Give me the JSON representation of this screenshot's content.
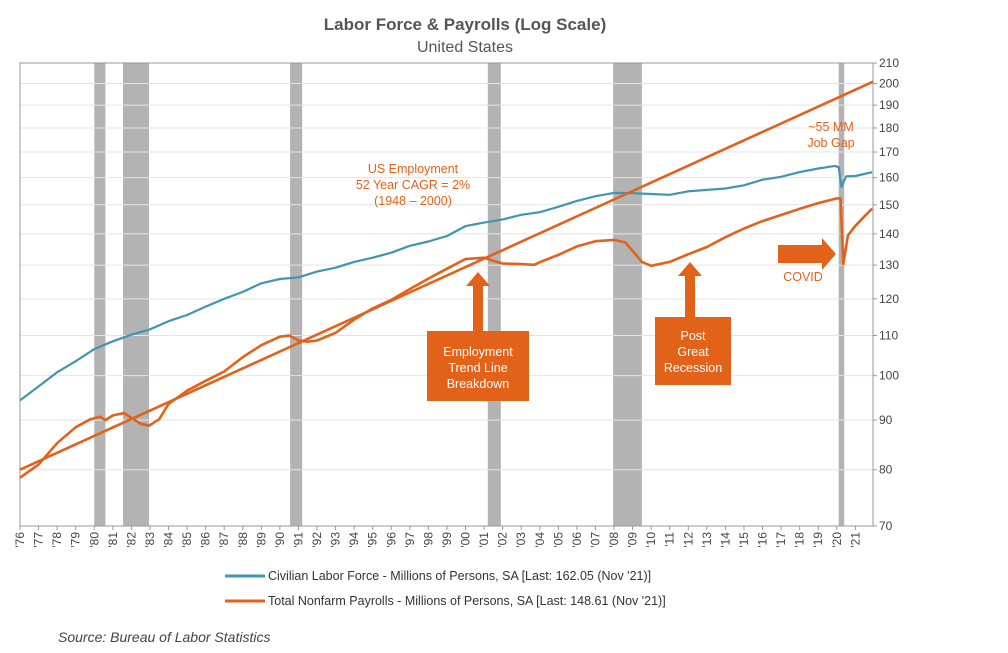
{
  "colors": {
    "labor_force": "#3f96b0",
    "payrolls": "#e2621a",
    "trend": "#e2621a",
    "recession": "#b3b3b3",
    "annotation_box": "#e2621a",
    "grid": "#e4e4e4"
  },
  "chart_data": {
    "type": "line",
    "title": "Labor Force & Payrolls (Log Scale)",
    "subtitle": "United States",
    "y_scale": "log",
    "ylim": [
      70,
      210
    ],
    "y_ticks": [
      70,
      80,
      90,
      100,
      110,
      120,
      130,
      140,
      150,
      160,
      170,
      180,
      190,
      200,
      210
    ],
    "x_range": [
      1976.0,
      2021.95
    ],
    "x_tick_labels": [
      "'76",
      "'77",
      "'78",
      "'79",
      "'80",
      "'81",
      "'82",
      "'83",
      "'84",
      "'85",
      "'86",
      "'87",
      "'88",
      "'89",
      "'90",
      "'91",
      "'92",
      "'93",
      "'94",
      "'95",
      "'96",
      "'97",
      "'98",
      "'99",
      "'00",
      "'01",
      "'02",
      "'03",
      "'04",
      "'05",
      "'06",
      "'07",
      "'08",
      "'09",
      "'10",
      "'11",
      "'12",
      "'13",
      "'14",
      "'15",
      "'16",
      "'17",
      "'18",
      "'19",
      "'20",
      "'21"
    ],
    "grid": "horizontal",
    "legend_position": "bottom",
    "recessions": [
      [
        1980.0,
        1980.6
      ],
      [
        1981.55,
        1982.95
      ],
      [
        1990.55,
        1991.2
      ],
      [
        2001.2,
        2001.9
      ],
      [
        2007.95,
        2009.5
      ],
      [
        2020.1,
        2020.4
      ]
    ],
    "series": [
      {
        "name": "Civilian Labor Force - Millions of Persons, SA [Last: 162.05 (Nov '21)]",
        "color": "#3f96b0",
        "x": [
          1976.0,
          1977.0,
          1978.0,
          1979.0,
          1980.0,
          1981.0,
          1982.0,
          1983.0,
          1984.0,
          1985.0,
          1986.0,
          1987.0,
          1988.0,
          1989.0,
          1990.0,
          1991.0,
          1992.0,
          1993.0,
          1994.0,
          1995.0,
          1996.0,
          1997.0,
          1998.0,
          1999.0,
          2000.0,
          2001.0,
          2002.0,
          2003.0,
          2004.0,
          2005.0,
          2006.0,
          2007.0,
          2008.0,
          2009.0,
          2010.0,
          2011.0,
          2012.0,
          2013.0,
          2014.0,
          2015.0,
          2016.0,
          2017.0,
          2018.0,
          2019.0,
          2019.9,
          2020.1,
          2020.25,
          2020.5,
          2021.0,
          2021.9
        ],
        "values": [
          94.3,
          97.5,
          100.8,
          103.5,
          106.5,
          108.5,
          110.2,
          111.6,
          113.8,
          115.5,
          117.8,
          120.0,
          122.0,
          124.5,
          125.8,
          126.3,
          128.0,
          129.2,
          131.0,
          132.3,
          133.9,
          136.1,
          137.5,
          139.3,
          142.6,
          143.8,
          144.9,
          146.5,
          147.4,
          149.3,
          151.4,
          153.1,
          154.3,
          154.2,
          153.9,
          153.6,
          154.9,
          155.4,
          155.9,
          157.1,
          159.2,
          160.3,
          162.1,
          163.5,
          164.5,
          164.0,
          156.5,
          160.5,
          160.6,
          162.05
        ]
      },
      {
        "name": "Total Nonfarm Payrolls - Millions of Persons, SA [Last: 148.61 (Nov '21)]",
        "color": "#e2621a",
        "x": [
          1976.0,
          1977.0,
          1978.0,
          1979.0,
          1979.8,
          1980.3,
          1980.6,
          1981.0,
          1981.6,
          1982.0,
          1982.5,
          1982.95,
          1983.5,
          1984.0,
          1985.0,
          1986.0,
          1987.0,
          1988.0,
          1989.0,
          1990.0,
          1990.5,
          1991.0,
          1991.5,
          1992.0,
          1993.0,
          1994.0,
          1995.0,
          1996.0,
          1997.0,
          1998.0,
          1999.0,
          2000.0,
          2001.0,
          2001.5,
          2002.0,
          2003.0,
          2003.7,
          2004.0,
          2005.0,
          2006.0,
          2007.0,
          2008.0,
          2008.6,
          2009.0,
          2009.5,
          2010.0,
          2011.0,
          2012.0,
          2013.0,
          2014.0,
          2015.0,
          2016.0,
          2017.0,
          2018.0,
          2019.0,
          2020.0,
          2020.2,
          2020.35,
          2020.6,
          2021.0,
          2021.5,
          2021.9
        ],
        "values": [
          78.5,
          81.0,
          85.2,
          88.5,
          90.2,
          90.7,
          90.0,
          91.0,
          91.5,
          90.5,
          89.2,
          88.8,
          90.2,
          93.5,
          96.5,
          98.8,
          101.0,
          104.5,
          107.5,
          109.7,
          110.0,
          108.7,
          108.4,
          108.7,
          110.7,
          114.2,
          117.3,
          119.7,
          122.8,
          125.9,
          128.9,
          131.9,
          132.3,
          131.3,
          130.5,
          130.3,
          130.1,
          130.9,
          133.2,
          135.9,
          137.6,
          138.0,
          137.2,
          134.5,
          131.0,
          129.8,
          131.0,
          133.4,
          135.7,
          138.9,
          141.8,
          144.3,
          146.4,
          148.6,
          150.6,
          152.3,
          152.3,
          130.3,
          139.5,
          142.7,
          146.0,
          148.61
        ]
      },
      {
        "name": "",
        "color": "#e2621a",
        "x": [
          1976.0,
          2021.95
        ],
        "values": [
          80.0,
          200.9
        ]
      }
    ]
  },
  "annotations": {
    "trend_line1": "US Employment",
    "trend_line2": "52 Year CAGR = 2%",
    "trend_line3": "(1948 – 2000)",
    "gap_line1": "~55 MM",
    "gap_line2": "Job Gap",
    "covid": "COVID",
    "breakdown_line1": "Employment",
    "breakdown_line2": "Trend Line",
    "breakdown_line3": "Breakdown",
    "great_line1": "Post",
    "great_line2": "Great",
    "great_line3": "Recession"
  },
  "legend": {
    "labor_force": "Civilian Labor Force - Millions of Persons, SA [Last: 162.05 (Nov '21)]",
    "payrolls": "Total Nonfarm Payrolls - Millions of Persons, SA [Last: 148.61 (Nov '21)]"
  },
  "source": "Source:  Bureau of Labor Statistics"
}
